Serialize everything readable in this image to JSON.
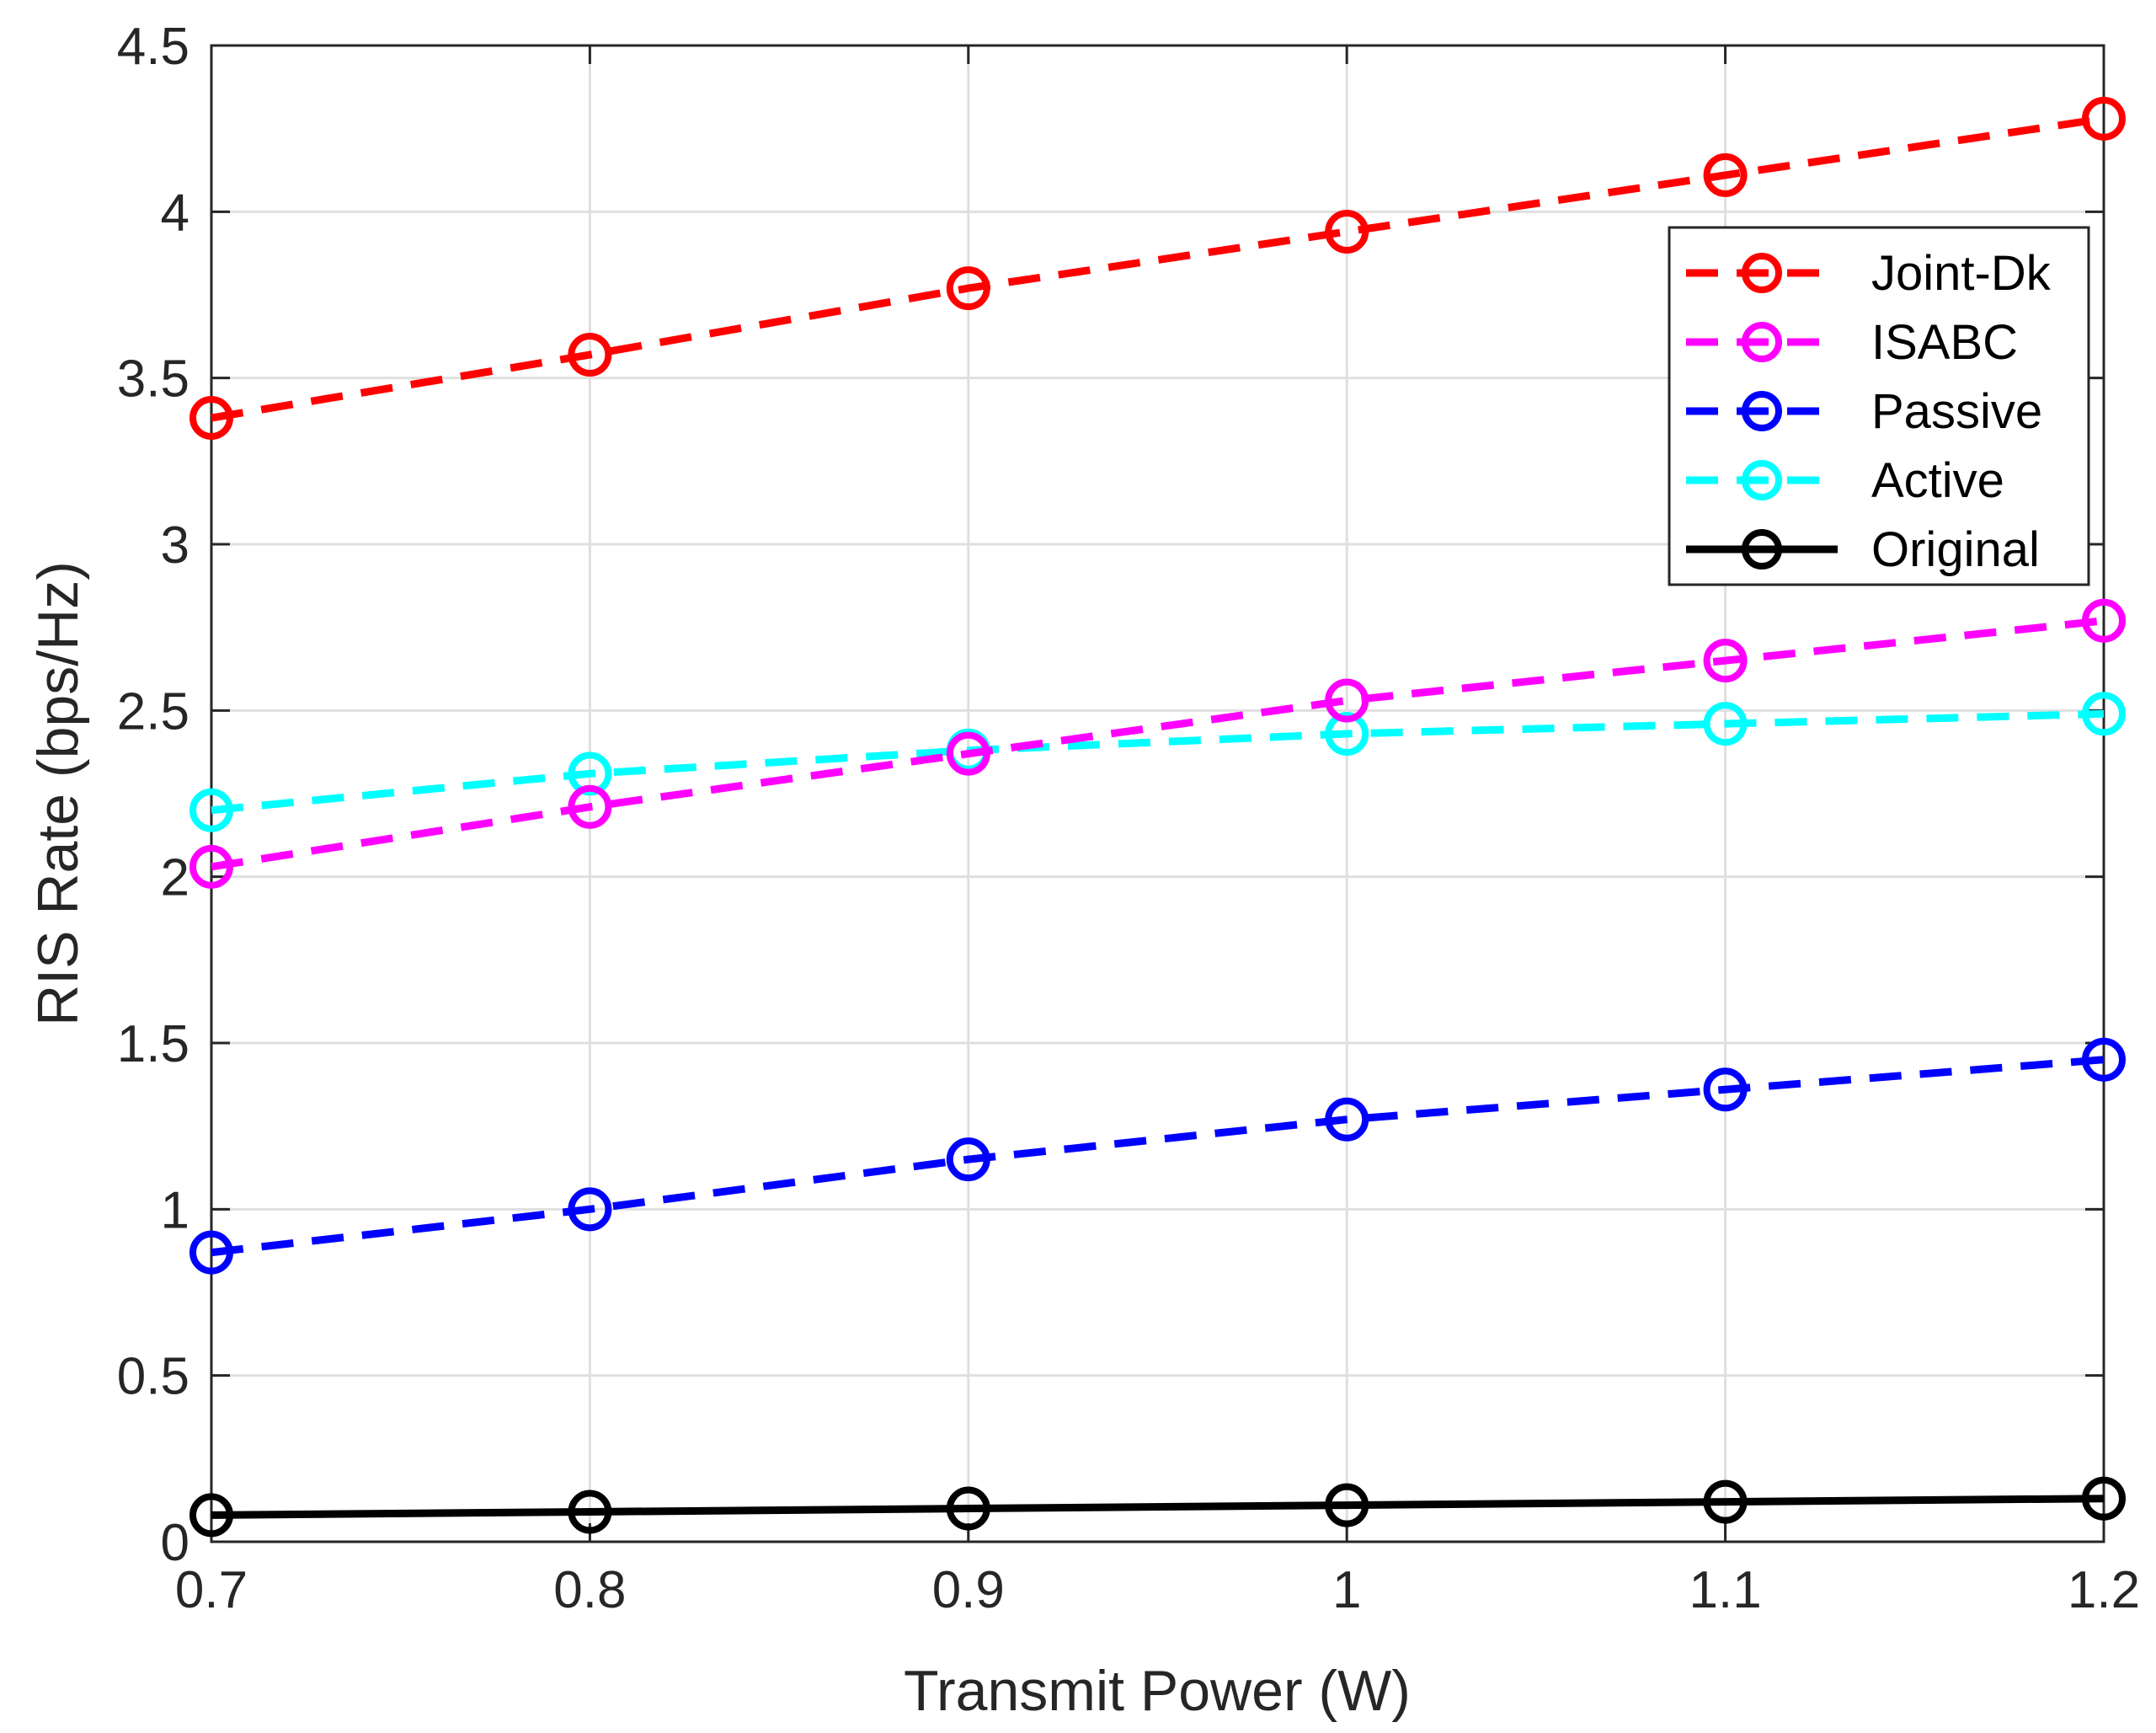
{
  "chart_data": {
    "type": "line",
    "title": "",
    "xlabel": "Transmit Power (W)",
    "ylabel": "RIS Rate (bps/Hz)",
    "xlim": [
      0.7,
      1.2
    ],
    "ylim": [
      0,
      4.5
    ],
    "grid": true,
    "legend_position": "top-right",
    "x": [
      0.7,
      0.8,
      0.9,
      1.0,
      1.1,
      1.2
    ],
    "x_tick_labels": [
      "0.7",
      "0.8",
      "0.9",
      "1",
      "1.1",
      "1.2"
    ],
    "y_ticks": [
      0,
      0.5,
      1,
      1.5,
      2,
      2.5,
      3,
      3.5,
      4,
      4.5
    ],
    "y_tick_labels": [
      "0",
      "0.5",
      "1",
      "1.5",
      "2",
      "2.5",
      "3",
      "3.5",
      "4",
      "4.5"
    ],
    "series": [
      {
        "name": "Joint-Dk",
        "color": "#ff0000",
        "line_style": "dashed",
        "marker": "circle",
        "values": [
          3.38,
          3.57,
          3.77,
          3.94,
          4.11,
          4.28
        ]
      },
      {
        "name": "ISABC",
        "color": "#ff00ff",
        "line_style": "dashed",
        "marker": "circle",
        "values": [
          2.03,
          2.21,
          2.37,
          2.53,
          2.65,
          2.77
        ]
      },
      {
        "name": "Passive",
        "color": "#0000ff",
        "line_style": "dashed",
        "marker": "circle",
        "values": [
          0.87,
          1.0,
          1.15,
          1.27,
          1.36,
          1.45
        ]
      },
      {
        "name": "Active",
        "color": "#00ffff",
        "line_style": "dashed",
        "marker": "circle",
        "values": [
          2.2,
          2.31,
          2.38,
          2.43,
          2.46,
          2.49
        ]
      },
      {
        "name": "Original",
        "color": "#000000",
        "line_style": "solid",
        "marker": "circle",
        "values": [
          0.08,
          0.09,
          0.1,
          0.11,
          0.12,
          0.13
        ]
      }
    ]
  }
}
